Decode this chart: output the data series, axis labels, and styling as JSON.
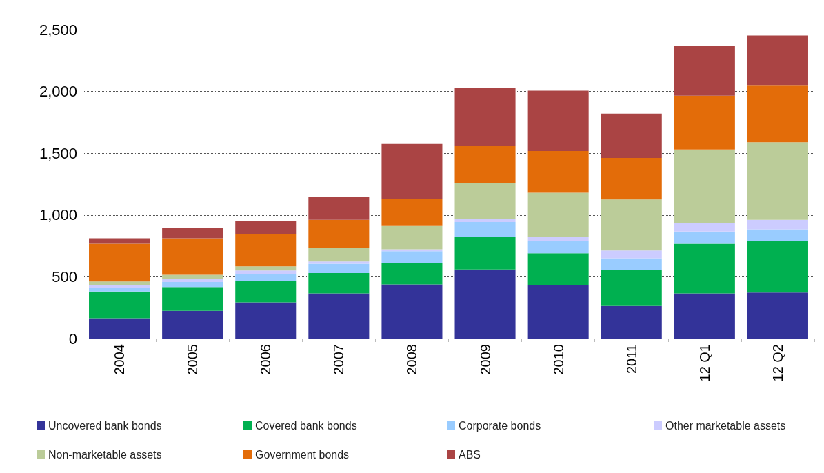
{
  "chart_data": {
    "type": "bar",
    "stacked": true,
    "categories": [
      "2004",
      "2005",
      "2006",
      "2007",
      "2008",
      "2009",
      "2010",
      "2011",
      "12 Q1",
      "12 Q2"
    ],
    "series": [
      {
        "name": "Uncovered bank bonds",
        "color": "#333399",
        "values": [
          165,
          225,
          293,
          366,
          438,
          560,
          429,
          264,
          366,
          372
        ]
      },
      {
        "name": "Covered bank bonds",
        "color": "#00b050",
        "values": [
          216,
          192,
          172,
          164,
          173,
          266,
          262,
          291,
          401,
          416
        ]
      },
      {
        "name": "Corporate bonds",
        "color": "#99ccff",
        "values": [
          27,
          41,
          59,
          75,
          96,
          117,
          99,
          95,
          99,
          96
        ]
      },
      {
        "name": "Other marketable assets",
        "color": "#ccccff",
        "values": [
          21,
          25,
          27,
          18,
          15,
          25,
          34,
          63,
          72,
          77
        ]
      },
      {
        "name": "Non-marketable assets",
        "color": "#bbcc99",
        "values": [
          33,
          33,
          33,
          114,
          189,
          293,
          356,
          413,
          592,
          628
        ]
      },
      {
        "name": "Government bonds",
        "color": "#e36c09",
        "values": [
          305,
          296,
          262,
          224,
          220,
          296,
          338,
          336,
          435,
          457
        ]
      },
      {
        "name": "ABS",
        "color": "#aa4444",
        "values": [
          45,
          84,
          108,
          183,
          444,
          474,
          488,
          359,
          406,
          406
        ]
      }
    ],
    "ylim": [
      0,
      2500
    ],
    "yticks": [
      0,
      500,
      {
        "value": 1000,
        "label": "1,000"
      },
      {
        "value": 1500,
        "label": "1,500"
      },
      {
        "value": 2000,
        "label": "2,000"
      },
      {
        "value": 2500,
        "label": "2,500"
      }
    ],
    "grid": "y",
    "legend": "bottom"
  }
}
